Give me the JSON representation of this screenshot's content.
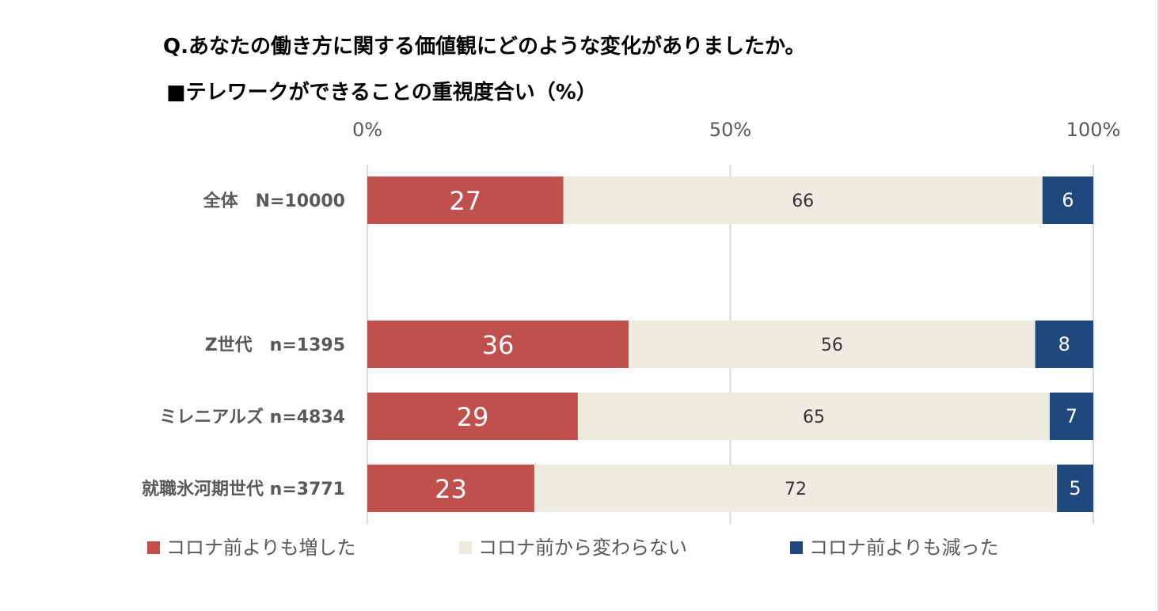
{
  "header": {
    "title": "Q.あなたの働き方に関する価値観にどのような変化がありましたか。",
    "subtitle": "■テレワークができることの重視度合い（%）"
  },
  "colors": {
    "increased": "#c0504d",
    "unchanged": "#eeece1",
    "decreased": "#1f497d",
    "grid": "#d9d9d9",
    "label_text": "#595959",
    "axis_text": "#595959"
  },
  "chart_data": {
    "type": "bar",
    "orientation": "horizontal",
    "stacked": true,
    "x_ticks": [
      "0%",
      "50%",
      "100%"
    ],
    "xlim": [
      0,
      100
    ],
    "categories": [
      "全体　N=10000",
      "",
      "Z世代　n=1395",
      "ミレニアルズ n=4834",
      "就職氷河期世代 n=3771"
    ],
    "series": [
      {
        "name": "コロナ前よりも増した",
        "values": [
          27,
          null,
          36,
          29,
          23
        ]
      },
      {
        "name": "コロナ前から変わらない",
        "values": [
          66,
          null,
          56,
          65,
          72
        ]
      },
      {
        "name": "コロナ前よりも減った",
        "values": [
          6,
          null,
          8,
          7,
          5
        ]
      }
    ],
    "grid": true,
    "legend_position": "bottom"
  }
}
